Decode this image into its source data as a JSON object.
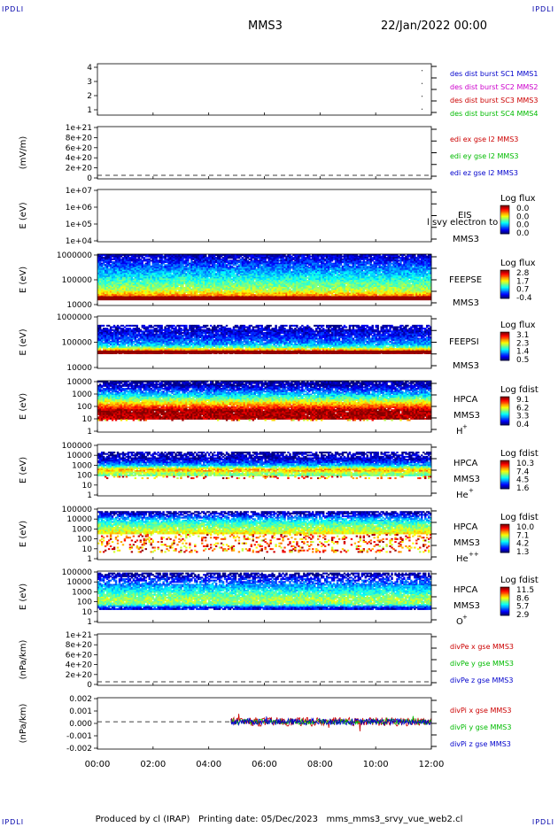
{
  "header": {
    "corner_left": "IPDLI",
    "corner_right": "IPDLI",
    "spacecraft": "MMS3",
    "date": "22/Jan/2022 00:00"
  },
  "footer": {
    "produced_by": "Produced by cl (IRAP)",
    "printing_date": "Printing date: 05/Dec/2023",
    "script": "mms_mms3_srvy_vue_web2.cl"
  },
  "x_axis": {
    "ticks": [
      "00:00",
      "02:00",
      "04:00",
      "06:00",
      "08:00",
      "10:00",
      "12:00"
    ]
  },
  "colors": {
    "blue": "#0000cc",
    "magenta": "#cc00cc",
    "red": "#cc0000",
    "green": "#00bb00"
  },
  "chart_data": [
    {
      "id": "burst",
      "type": "scatter",
      "ylabel": "",
      "yticks": [
        "4",
        "3",
        "2",
        "1"
      ],
      "ylim": [
        0.5,
        4.5
      ],
      "legend": [
        {
          "text": "des dist burst SC1 MMS1",
          "color": "blue"
        },
        {
          "text": "des dist burst SC2 MMS2",
          "color": "magenta"
        },
        {
          "text": "des dist burst SC3 MMS3",
          "color": "red"
        },
        {
          "text": "des dist burst SC4 MMS4",
          "color": "green"
        }
      ],
      "series": [
        {
          "values": [
            [
              11.65,
              4
            ],
            [
              11.65,
              3
            ],
            [
              11.65,
              2
            ],
            [
              11.65,
              1
            ]
          ]
        }
      ]
    },
    {
      "id": "edi",
      "type": "line",
      "ylabel": "(mV/m)",
      "yticks": [
        "1e+21",
        "8e+20",
        "6e+20",
        "4e+20",
        "2e+20",
        "0"
      ],
      "ylim": [
        0,
        1e+21
      ],
      "zero_line": true,
      "legend": [
        {
          "text": "edi ex gse l2 MMS3",
          "color": "red"
        },
        {
          "text": "edi ey gse l2 MMS3",
          "color": "green"
        },
        {
          "text": "edi ez gse l2 MMS3",
          "color": "blue"
        }
      ]
    },
    {
      "id": "eis",
      "type": "heatmap",
      "ylabel": "E (eV)",
      "yticks": [
        "1e+07",
        "1e+06",
        "1e+05",
        "1e+04"
      ],
      "ylim": [
        10000,
        10000000
      ],
      "scale": "log",
      "instrument": "EIS",
      "sc": "MMS3",
      "overlay": "l svy electron to",
      "colorbar_title": "Log flux",
      "colorbar_ticks": [
        "0.0",
        "0.0",
        "0.0",
        "0.0"
      ],
      "empty": true
    },
    {
      "id": "feepse",
      "type": "heatmap",
      "ylabel": "E (eV)",
      "yticks": [
        "1000000",
        "100000",
        "10000"
      ],
      "ylim": [
        10000,
        1000000
      ],
      "scale": "log",
      "instrument": "FEEPSE",
      "sc": "MMS3",
      "colorbar_title": "Log flux",
      "colorbar_ticks": [
        "2.8",
        "1.7",
        "0.7",
        "-0.4"
      ],
      "profile": [
        [
          0.0,
          0.05
        ],
        [
          0.15,
          0.15
        ],
        [
          0.35,
          0.3
        ],
        [
          0.55,
          0.45
        ],
        [
          0.7,
          0.55
        ],
        [
          0.82,
          0.75
        ],
        [
          0.9,
          0.98
        ]
      ],
      "band": [
        0.82,
        0.9,
        0.98
      ],
      "noise": 0.08
    },
    {
      "id": "feepsi",
      "type": "heatmap",
      "ylabel": "E (eV)",
      "yticks": [
        "1000000",
        "100000",
        "10000"
      ],
      "ylim": [
        10000,
        1000000
      ],
      "scale": "log",
      "instrument": "FEEPSI",
      "sc": "MMS3",
      "colorbar_title": "Log flux",
      "colorbar_ticks": [
        "3.1",
        "2.3",
        "1.4",
        "0.5"
      ],
      "profile": [
        [
          0.0,
          -1
        ],
        [
          0.1,
          -1
        ],
        [
          0.2,
          0.05
        ],
        [
          0.4,
          0.15
        ],
        [
          0.55,
          0.3
        ],
        [
          0.62,
          0.55
        ],
        [
          0.7,
          0.98
        ],
        [
          0.73,
          -1
        ],
        [
          1.0,
          -1
        ]
      ],
      "band": [
        0.66,
        0.72,
        0.98
      ],
      "noise": 0.35
    },
    {
      "id": "hpca_h",
      "type": "heatmap",
      "ylabel": "E (eV)",
      "yticks": [
        "10000",
        "1000",
        "100",
        "10",
        "1"
      ],
      "ylim": [
        1,
        30000
      ],
      "scale": "log",
      "instrument": "HPCA",
      "sc": "MMS3",
      "species": "H",
      "species_sup": "+",
      "colorbar_title": "Log fdist",
      "colorbar_ticks": [
        "9.1",
        "6.2",
        "3.3",
        "0.4"
      ],
      "profile": [
        [
          0.0,
          0.02
        ],
        [
          0.08,
          0.05
        ],
        [
          0.18,
          0.2
        ],
        [
          0.28,
          0.35
        ],
        [
          0.38,
          0.55
        ],
        [
          0.48,
          0.75
        ],
        [
          0.58,
          0.98
        ],
        [
          0.75,
          0.95
        ],
        [
          0.85,
          -1
        ],
        [
          1.0,
          -1
        ]
      ],
      "sparse_below": 0.75,
      "noise": 0.12
    },
    {
      "id": "hpca_he",
      "type": "heatmap",
      "ylabel": "E (eV)",
      "yticks": [
        "100000",
        "10000",
        "1000",
        "100",
        "10",
        "1"
      ],
      "ylim": [
        1,
        100000
      ],
      "scale": "log",
      "instrument": "HPCA",
      "sc": "MMS3",
      "species": "He",
      "species_sup": "+",
      "colorbar_title": "Log fdist",
      "colorbar_ticks": [
        "10.3",
        "7.4",
        "4.5",
        "1.6"
      ],
      "profile": [
        [
          0.0,
          -1
        ],
        [
          0.1,
          -1
        ],
        [
          0.15,
          0.02
        ],
        [
          0.3,
          0.1
        ],
        [
          0.4,
          0.3
        ],
        [
          0.5,
          0.75
        ],
        [
          0.55,
          0.55
        ],
        [
          0.65,
          0.45
        ],
        [
          0.7,
          -1
        ],
        [
          1.0,
          -1
        ]
      ],
      "sparse_below": 0.6,
      "noise": 0.3
    },
    {
      "id": "hpca_hepp",
      "type": "heatmap",
      "ylabel": "E (eV)",
      "yticks": [
        "100000",
        "10000",
        "1000",
        "100",
        "10",
        "1"
      ],
      "ylim": [
        1,
        100000
      ],
      "scale": "log",
      "instrument": "HPCA",
      "sc": "MMS3",
      "species": "He",
      "species_sup": "++",
      "colorbar_title": "Log fdist",
      "colorbar_ticks": [
        "10.0",
        "7.1",
        "4.2",
        "1.3"
      ],
      "profile": [
        [
          0.0,
          -1
        ],
        [
          0.06,
          0.02
        ],
        [
          0.12,
          0.12
        ],
        [
          0.2,
          0.3
        ],
        [
          0.3,
          0.45
        ],
        [
          0.4,
          0.55
        ],
        [
          0.55,
          0.7
        ],
        [
          0.7,
          0.8
        ],
        [
          0.85,
          0.5
        ],
        [
          0.9,
          -1
        ],
        [
          1.0,
          -1
        ]
      ],
      "sparse_below": 0.5,
      "noise": 0.2
    },
    {
      "id": "hpca_o",
      "type": "heatmap",
      "ylabel": "E (eV)",
      "yticks": [
        "100000",
        "10000",
        "1000",
        "100",
        "10",
        "1"
      ],
      "ylim": [
        1,
        100000
      ],
      "scale": "log",
      "instrument": "HPCA",
      "sc": "MMS3",
      "species": "O",
      "species_sup": "+",
      "colorbar_title": "Log fdist",
      "colorbar_ticks": [
        "11.5",
        "8.6",
        "5.7",
        "2.9"
      ],
      "profile": [
        [
          0.0,
          -1
        ],
        [
          0.05,
          0.02
        ],
        [
          0.15,
          0.15
        ],
        [
          0.3,
          0.3
        ],
        [
          0.45,
          0.45
        ],
        [
          0.55,
          0.55
        ],
        [
          0.65,
          0.5
        ],
        [
          0.72,
          0.1
        ],
        [
          0.8,
          -1
        ],
        [
          1.0,
          -1
        ]
      ],
      "sparse_below": 0.8,
      "noise": 0.3
    },
    {
      "id": "divpe",
      "type": "line",
      "ylabel": "(nPa/km)",
      "yticks": [
        "1e+21",
        "8e+20",
        "6e+20",
        "4e+20",
        "2e+20",
        "0"
      ],
      "ylim": [
        0,
        1e+21
      ],
      "zero_line": true,
      "legend": [
        {
          "text": "divPe x gse MMS3",
          "color": "red"
        },
        {
          "text": "divPe y gse MMS3",
          "color": "green"
        },
        {
          "text": "divPe z gse MMS3",
          "color": "blue"
        }
      ]
    },
    {
      "id": "divpi",
      "type": "line",
      "ylabel": "(nPa/km)",
      "yticks": [
        "0.002",
        "0.001",
        "0.000",
        "-0.001",
        "-0.002"
      ],
      "ylim": [
        -0.0025,
        0.0022
      ],
      "zero_line": true,
      "data_start_hour": 4.8,
      "legend": [
        {
          "text": "divPi x gse MMS3",
          "color": "red"
        },
        {
          "text": "divPi y gse MMS3",
          "color": "green"
        },
        {
          "text": "divPi z gse MMS3",
          "color": "blue"
        }
      ],
      "series": [
        {
          "name": "x",
          "color": "red",
          "spread": 0.0004
        },
        {
          "name": "y",
          "color": "green",
          "spread": 0.00025
        },
        {
          "name": "z",
          "color": "blue",
          "spread": 0.0003
        }
      ]
    }
  ]
}
